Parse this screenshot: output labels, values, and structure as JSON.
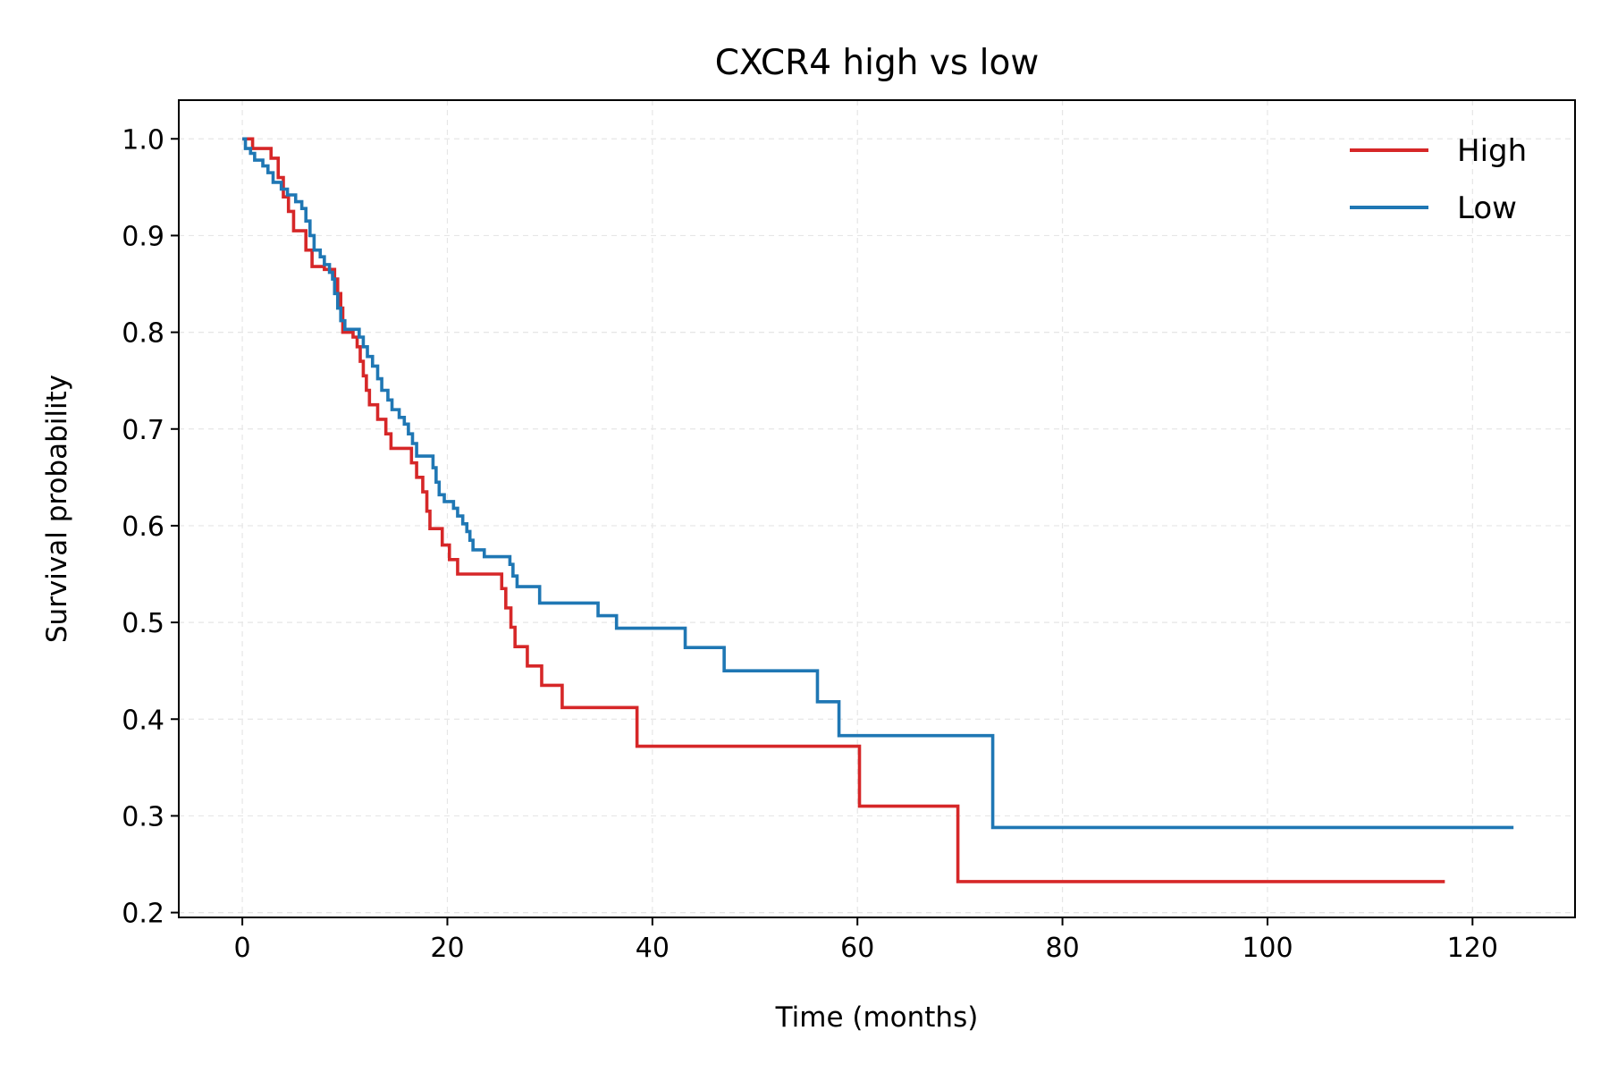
{
  "chart_data": {
    "type": "line",
    "title": "CXCR4 high vs low",
    "xlabel": "Time (months)",
    "ylabel": "Survival probability",
    "xlim": [
      -6.2,
      130
    ],
    "ylim": [
      0.195,
      1.04
    ],
    "xticks": [
      0,
      20,
      40,
      60,
      80,
      100,
      120
    ],
    "xtick_labels": [
      "0",
      "20",
      "40",
      "60",
      "80",
      "100",
      "120"
    ],
    "yticks": [
      0.2,
      0.3,
      0.4,
      0.5,
      0.6,
      0.7,
      0.8,
      0.9,
      1.0
    ],
    "ytick_labels": [
      "0.2",
      "0.3",
      "0.4",
      "0.5",
      "0.6",
      "0.7",
      "0.8",
      "0.9",
      "1.0"
    ],
    "grid": true,
    "legend_position": "top-right",
    "series": [
      {
        "name": "High",
        "color": "#d62728",
        "step_points": [
          [
            0,
            1.0
          ],
          [
            1.0,
            0.99
          ],
          [
            2.8,
            0.98
          ],
          [
            3.5,
            0.96
          ],
          [
            4.0,
            0.94
          ],
          [
            4.5,
            0.925
          ],
          [
            5.0,
            0.905
          ],
          [
            6.2,
            0.885
          ],
          [
            6.8,
            0.868
          ],
          [
            8.0,
            0.865
          ],
          [
            9.0,
            0.855
          ],
          [
            9.3,
            0.84
          ],
          [
            9.6,
            0.825
          ],
          [
            9.8,
            0.8
          ],
          [
            10.8,
            0.795
          ],
          [
            11.2,
            0.785
          ],
          [
            11.5,
            0.77
          ],
          [
            11.8,
            0.755
          ],
          [
            12.1,
            0.74
          ],
          [
            12.4,
            0.725
          ],
          [
            13.2,
            0.71
          ],
          [
            14.0,
            0.695
          ],
          [
            14.5,
            0.68
          ],
          [
            16.5,
            0.665
          ],
          [
            17.0,
            0.65
          ],
          [
            17.6,
            0.635
          ],
          [
            18.0,
            0.615
          ],
          [
            18.3,
            0.597
          ],
          [
            19.5,
            0.58
          ],
          [
            20.2,
            0.565
          ],
          [
            21.0,
            0.55
          ],
          [
            25.3,
            0.535
          ],
          [
            25.7,
            0.515
          ],
          [
            26.2,
            0.495
          ],
          [
            26.6,
            0.475
          ],
          [
            27.8,
            0.455
          ],
          [
            29.2,
            0.435
          ],
          [
            31.2,
            0.412
          ],
          [
            38.5,
            0.372
          ],
          [
            60.2,
            0.31
          ],
          [
            69.8,
            0.232
          ],
          [
            117.3,
            0.232
          ]
        ]
      },
      {
        "name": "Low",
        "color": "#1f77b4",
        "step_points": [
          [
            0,
            1.0
          ],
          [
            0.3,
            0.99
          ],
          [
            0.8,
            0.985
          ],
          [
            1.2,
            0.978
          ],
          [
            2.0,
            0.972
          ],
          [
            2.5,
            0.965
          ],
          [
            3.0,
            0.955
          ],
          [
            3.8,
            0.948
          ],
          [
            4.4,
            0.942
          ],
          [
            5.2,
            0.935
          ],
          [
            5.8,
            0.928
          ],
          [
            6.2,
            0.915
          ],
          [
            6.6,
            0.9
          ],
          [
            7.0,
            0.885
          ],
          [
            7.6,
            0.878
          ],
          [
            8.0,
            0.87
          ],
          [
            8.5,
            0.862
          ],
          [
            8.8,
            0.855
          ],
          [
            9.0,
            0.84
          ],
          [
            9.3,
            0.825
          ],
          [
            9.6,
            0.812
          ],
          [
            10.0,
            0.803
          ],
          [
            11.4,
            0.795
          ],
          [
            11.8,
            0.785
          ],
          [
            12.2,
            0.775
          ],
          [
            12.7,
            0.765
          ],
          [
            13.2,
            0.752
          ],
          [
            13.6,
            0.74
          ],
          [
            14.2,
            0.73
          ],
          [
            14.6,
            0.72
          ],
          [
            15.3,
            0.712
          ],
          [
            15.8,
            0.705
          ],
          [
            16.2,
            0.695
          ],
          [
            16.6,
            0.685
          ],
          [
            17.0,
            0.672
          ],
          [
            18.6,
            0.66
          ],
          [
            18.9,
            0.645
          ],
          [
            19.2,
            0.632
          ],
          [
            19.7,
            0.625
          ],
          [
            20.6,
            0.618
          ],
          [
            21.0,
            0.61
          ],
          [
            21.5,
            0.602
          ],
          [
            21.9,
            0.594
          ],
          [
            22.2,
            0.585
          ],
          [
            22.5,
            0.575
          ],
          [
            23.6,
            0.568
          ],
          [
            26.1,
            0.56
          ],
          [
            26.4,
            0.548
          ],
          [
            26.8,
            0.537
          ],
          [
            29.0,
            0.52
          ],
          [
            34.7,
            0.507
          ],
          [
            36.5,
            0.494
          ],
          [
            43.2,
            0.474
          ],
          [
            47.0,
            0.45
          ],
          [
            56.1,
            0.418
          ],
          [
            58.2,
            0.383
          ],
          [
            73.2,
            0.288
          ],
          [
            124.0,
            0.288
          ]
        ]
      }
    ]
  }
}
